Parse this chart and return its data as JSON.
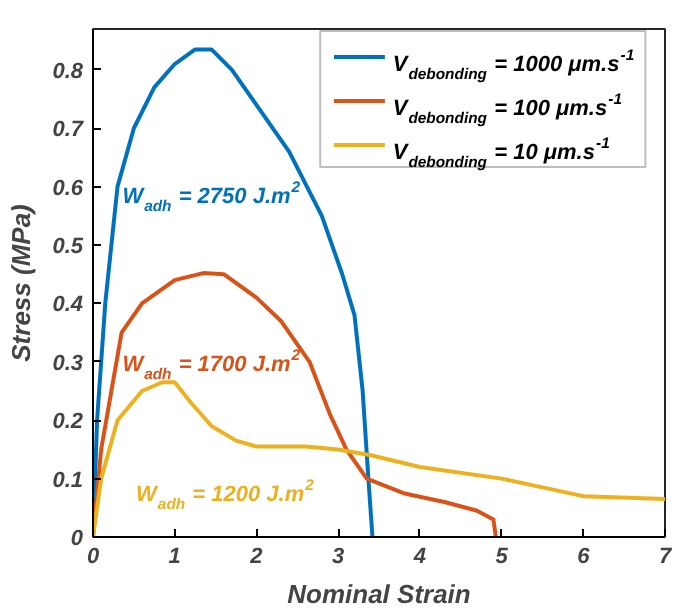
{
  "chart_data": {
    "type": "line",
    "xlabel": "Nominal Strain",
    "ylabel": "Stress (MPa)",
    "xlim": [
      0,
      7
    ],
    "ylim": [
      0,
      0.87
    ],
    "xticks": [
      0,
      1,
      2,
      3,
      4,
      5,
      6,
      7
    ],
    "yticks": [
      0,
      0.1,
      0.2,
      0.3,
      0.4,
      0.5,
      0.6,
      0.7,
      0.8
    ],
    "grid": false,
    "legend": "top right",
    "line_style": "solid",
    "marker": "none",
    "series": [
      {
        "name": "V$_{debonding}$ = 1000 μm.s$^{-1}$",
        "color": "#0072bd",
        "x": [
          0,
          0.05,
          0.15,
          0.3,
          0.5,
          0.75,
          1,
          1.25,
          1.45,
          1.7,
          2,
          2.4,
          2.8,
          3.05,
          3.2,
          3.3,
          3.37,
          3.42
        ],
        "values": [
          0,
          0.2,
          0.4,
          0.6,
          0.7,
          0.77,
          0.81,
          0.835,
          0.835,
          0.8,
          0.74,
          0.66,
          0.55,
          0.45,
          0.38,
          0.25,
          0.1,
          0
        ]
      },
      {
        "name": "V$_{debonding}$ = 100 μm.s$^{-1}$",
        "color": "#d95319",
        "x": [
          0,
          0.1,
          0.35,
          0.6,
          1,
          1.35,
          1.6,
          2,
          2.3,
          2.65,
          2.9,
          3.1,
          3.35,
          3.8,
          4.3,
          4.7,
          4.9,
          4.93
        ],
        "values": [
          0,
          0.15,
          0.35,
          0.4,
          0.44,
          0.452,
          0.45,
          0.41,
          0.37,
          0.3,
          0.21,
          0.15,
          0.1,
          0.075,
          0.06,
          0.045,
          0.03,
          0
        ]
      },
      {
        "name": "V$_{debonding}$ = 10 μm.s$^{-1}$",
        "color": "#edb120",
        "x": [
          0,
          0.1,
          0.3,
          0.6,
          0.85,
          1,
          1.2,
          1.45,
          1.75,
          2,
          2.6,
          3,
          3.4,
          4,
          5,
          6,
          7
        ],
        "values": [
          0,
          0.1,
          0.2,
          0.25,
          0.265,
          0.265,
          0.23,
          0.19,
          0.165,
          0.155,
          0.155,
          0.15,
          0.14,
          0.12,
          0.1,
          0.07,
          0.065
        ]
      }
    ],
    "annotations": [
      "W$_{adh}$ = 2750 J.m$^{2}$",
      "W$_{adh}$ = 1700 J.m$^{2}$",
      "W$_{adh}$ = 1200 J.m$^{2}$"
    ]
  }
}
